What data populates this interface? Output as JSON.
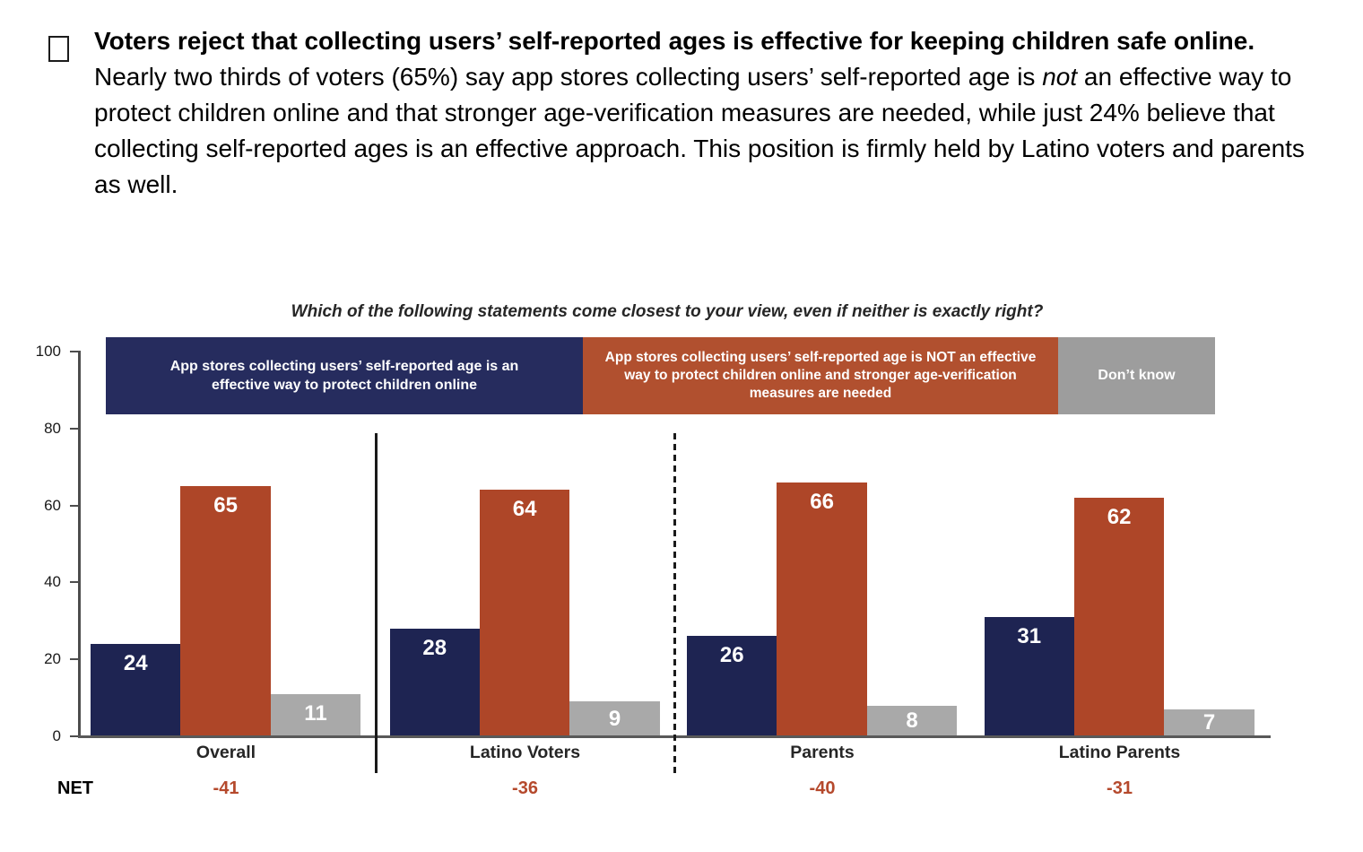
{
  "bullet_paragraph": {
    "bold_lead": "Voters reject that collecting users’ self-reported ages is effective for keeping children safe online.",
    "body_before_italic": " Nearly two thirds of voters (65%) say app stores collecting users’ self-reported age is ",
    "italic_word": "not",
    "body_after_italic": " an effective way to protect children online and that stronger age-verification measures are needed, while just 24% believe that collecting self-reported ages is an effective approach. This position is firmly held by Latino voters and parents as well."
  },
  "chart_data": {
    "type": "bar",
    "title": "Which of the following statements come closest to your view, even if neither is exactly right?",
    "categories": [
      "Overall",
      "Latino Voters",
      "Parents",
      "Latino Parents"
    ],
    "series": [
      {
        "name": "App stores collecting users’ self-reported age is an effective way to protect children online",
        "color": "#1E2452",
        "legend_color": "#262C5E",
        "values": [
          24,
          28,
          26,
          31
        ]
      },
      {
        "name": "App stores collecting users’ self-reported age is NOT an effective way to protect children online and stronger age-verification measures are needed",
        "color": "#AE4628",
        "legend_color": "#B1502F",
        "values": [
          65,
          64,
          66,
          62
        ]
      },
      {
        "name": "Don’t know",
        "color": "#A9A9A9",
        "legend_color": "#9D9D9D",
        "values": [
          11,
          9,
          8,
          7
        ]
      }
    ],
    "net_label": "NET",
    "net_values": [
      "-41",
      "-36",
      "-40",
      "-31"
    ],
    "net_color": "#B5492C",
    "y_ticks": [
      0,
      20,
      40,
      60,
      80,
      100
    ],
    "ylim": [
      0,
      100
    ],
    "grid": false,
    "legend_position": "top",
    "group_separators": [
      "solid after Overall",
      "dashed after Latino Voters"
    ]
  }
}
